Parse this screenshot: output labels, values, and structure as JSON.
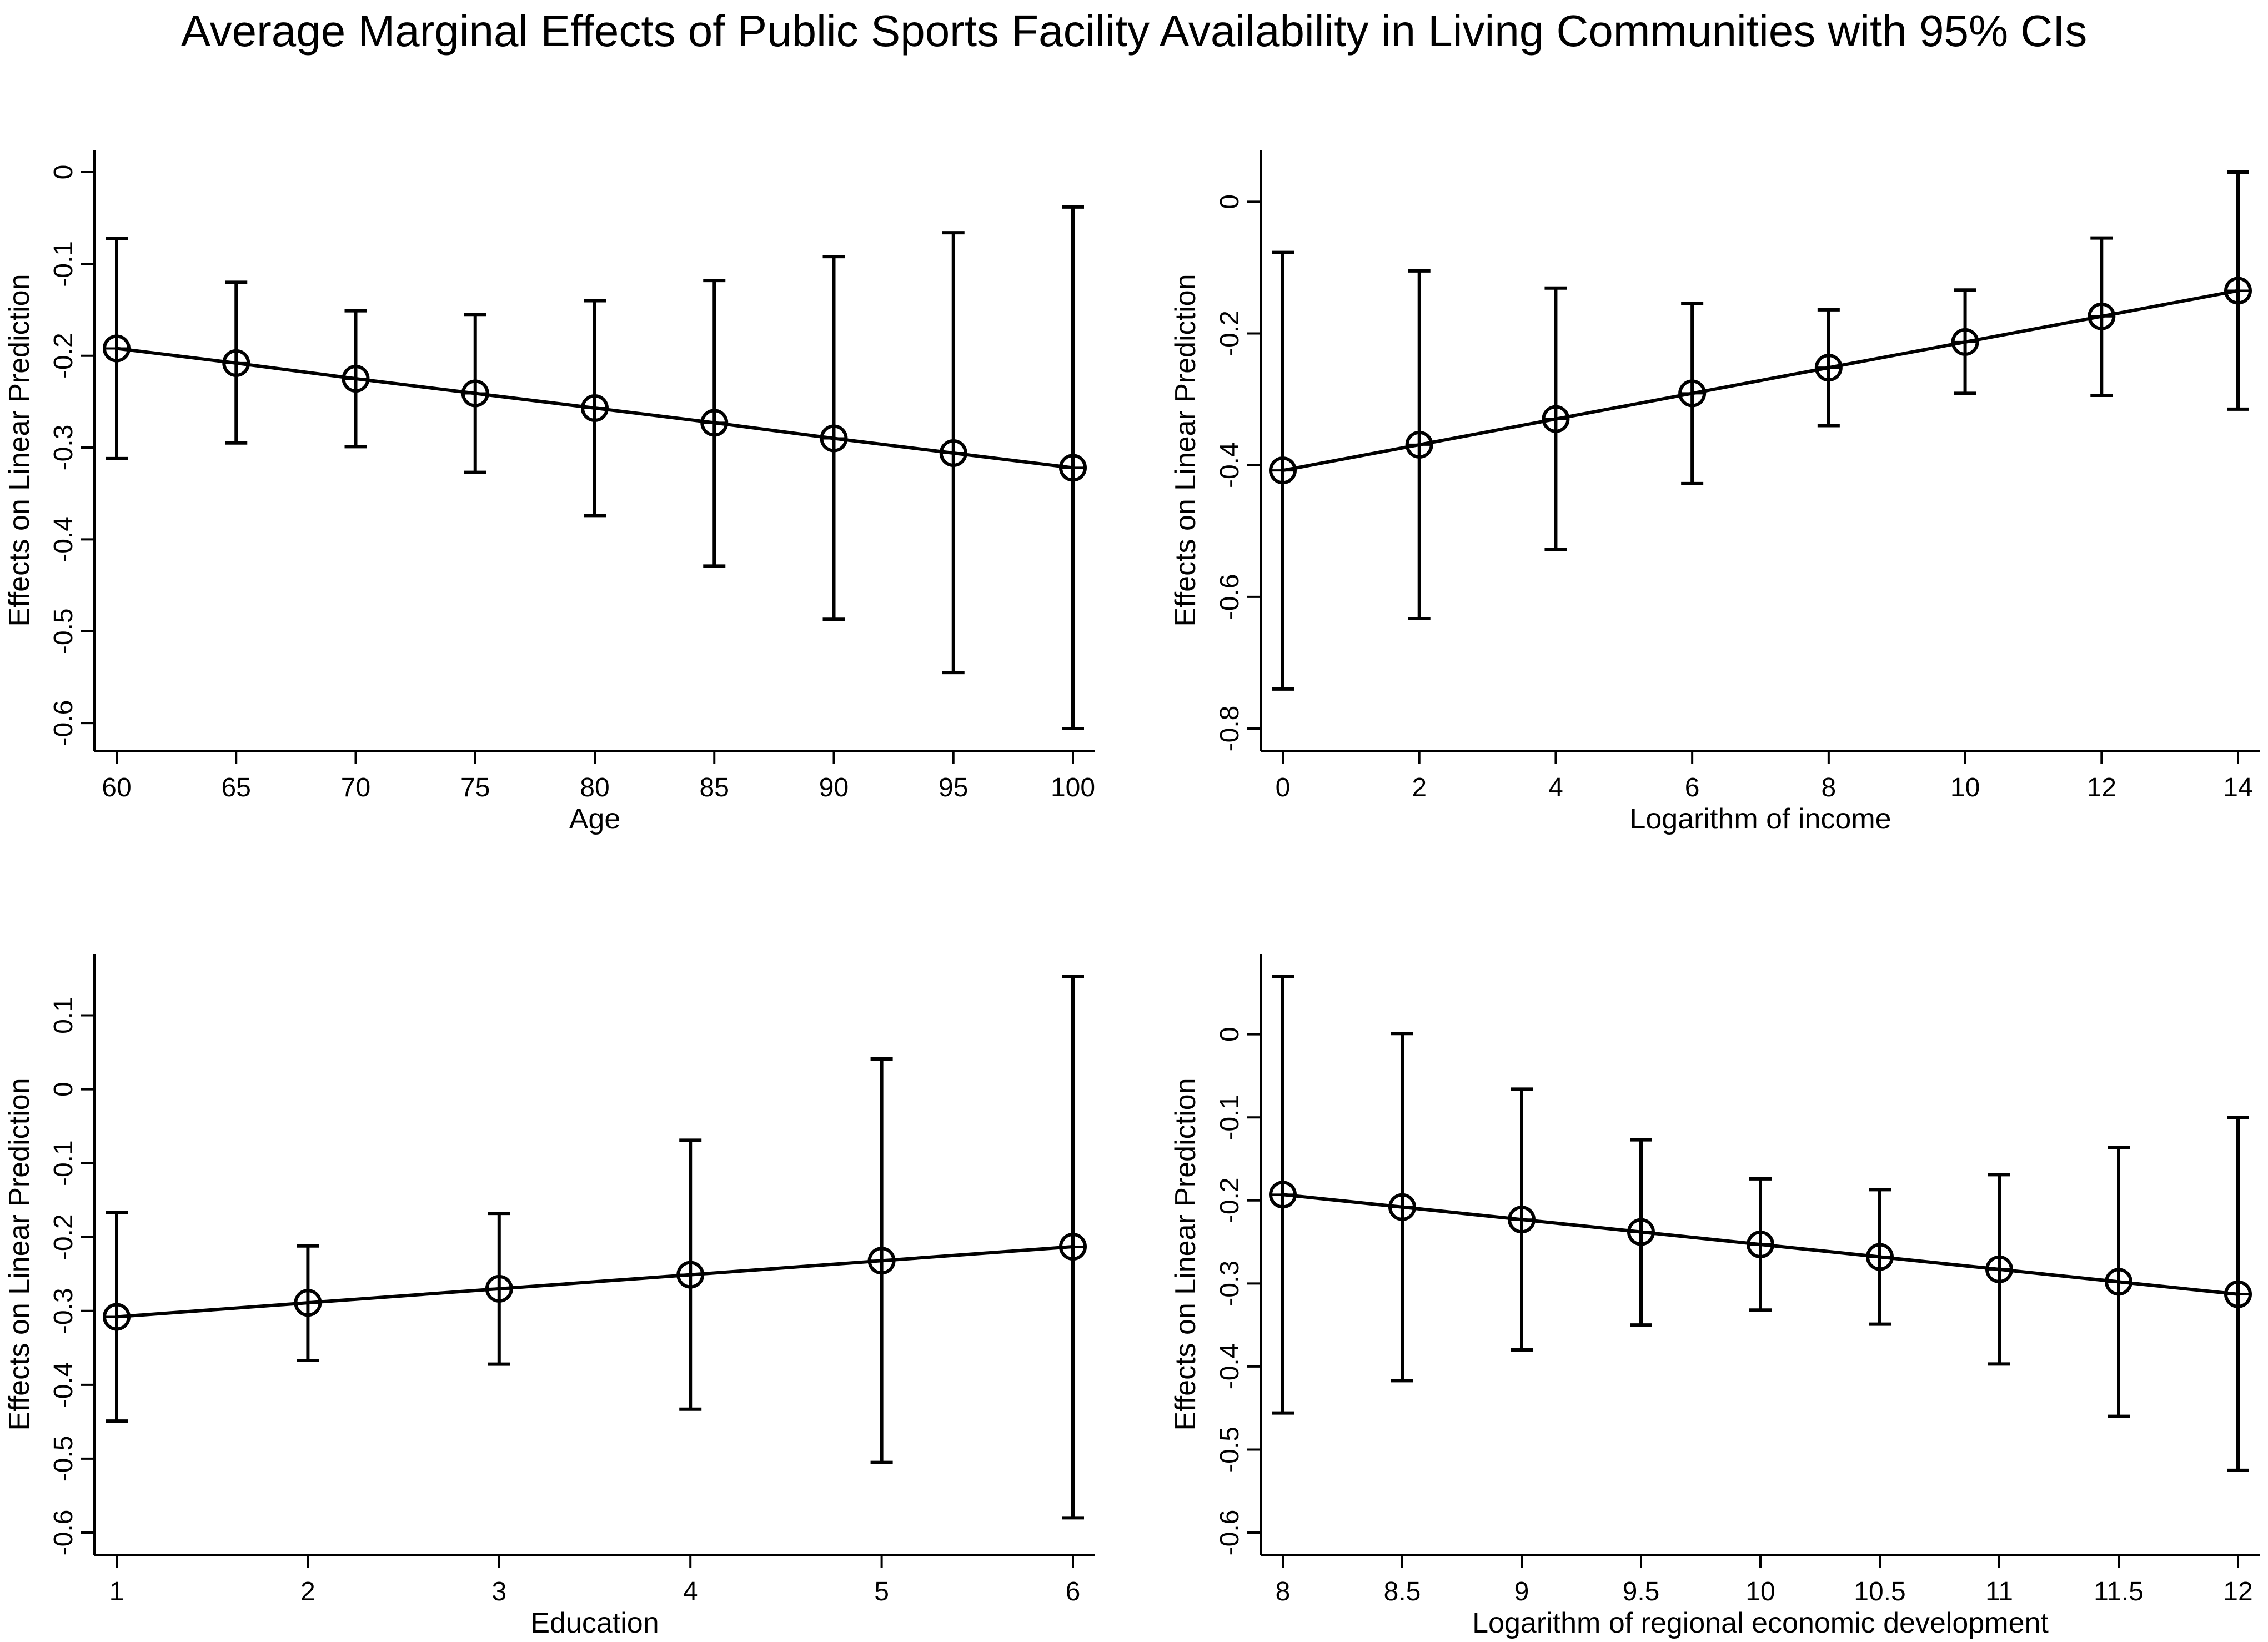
{
  "title": "Average Marginal Effects of Public Sports Facility Availability in Living Communities with 95% CIs",
  "chart_data": [
    {
      "type": "line",
      "xlabel": "Age",
      "ylabel": "Effects on Linear Prediction",
      "xlim": [
        60,
        100
      ],
      "ylim": [
        -0.6,
        0
      ],
      "xticks": [
        60,
        65,
        70,
        75,
        80,
        85,
        90,
        95,
        100
      ],
      "xtick_labels": [
        "60",
        "65",
        "70",
        "75",
        "80",
        "85",
        "90",
        "95",
        "100"
      ],
      "yticks": [
        -0.6,
        -0.5,
        -0.4,
        -0.3,
        -0.2,
        -0.1,
        0
      ],
      "ytick_labels": [
        "-0.6",
        "-0.5",
        "-0.4",
        "-0.3",
        "-0.2",
        "-0.1",
        "0"
      ],
      "grid": false,
      "x": [
        60,
        65,
        70,
        75,
        80,
        85,
        90,
        95,
        100
      ],
      "y": [
        -0.192,
        -0.208,
        -0.225,
        -0.241,
        -0.257,
        -0.273,
        -0.29,
        -0.306,
        -0.322
      ],
      "ci_low": [
        -0.312,
        -0.295,
        -0.299,
        -0.327,
        -0.374,
        -0.429,
        -0.487,
        -0.545,
        -0.606
      ],
      "ci_high": [
        -0.072,
        -0.12,
        -0.151,
        -0.155,
        -0.14,
        -0.118,
        -0.092,
        -0.066,
        -0.038
      ]
    },
    {
      "type": "line",
      "xlabel": "Logarithm of income",
      "ylabel": "Effects on Linear Prediction",
      "xlim": [
        0,
        14
      ],
      "ylim": [
        -0.8,
        0
      ],
      "xticks": [
        0,
        2,
        4,
        6,
        8,
        10,
        12,
        14
      ],
      "xtick_labels": [
        "0",
        "2",
        "4",
        "6",
        "8",
        "10",
        "12",
        "14"
      ],
      "yticks": [
        -0.8,
        -0.6,
        -0.4,
        -0.2,
        0
      ],
      "ytick_labels": [
        "-0.8",
        "-0.6",
        "-0.4",
        "-0.2",
        "0"
      ],
      "grid": false,
      "x": [
        0,
        2,
        4,
        6,
        8,
        10,
        12,
        14
      ],
      "y": [
        -0.408,
        -0.369,
        -0.33,
        -0.291,
        -0.252,
        -0.213,
        -0.174,
        -0.135
      ],
      "ci_low": [
        -0.74,
        -0.633,
        -0.528,
        -0.428,
        -0.34,
        -0.291,
        -0.294,
        -0.315
      ],
      "ci_high": [
        -0.077,
        -0.105,
        -0.131,
        -0.154,
        -0.164,
        -0.134,
        -0.055,
        0.045
      ]
    },
    {
      "type": "line",
      "xlabel": "Education",
      "ylabel": "Effects on Linear Prediction",
      "xlim": [
        1,
        6
      ],
      "ylim": [
        -0.6,
        0.1
      ],
      "xticks": [
        1,
        2,
        3,
        4,
        5,
        6
      ],
      "xtick_labels": [
        "1",
        "2",
        "3",
        "4",
        "5",
        "6"
      ],
      "yticks": [
        -0.6,
        -0.5,
        -0.4,
        -0.3,
        -0.2,
        -0.1,
        0,
        0.1
      ],
      "ytick_labels": [
        "-0.6",
        "-0.5",
        "-0.4",
        "-0.3",
        "-0.2",
        "-0.1",
        "0",
        "0.1"
      ],
      "grid": false,
      "x": [
        1,
        2,
        3,
        4,
        5,
        6
      ],
      "y": [
        -0.308,
        -0.289,
        -0.27,
        -0.251,
        -0.232,
        -0.213
      ],
      "ci_low": [
        -0.449,
        -0.367,
        -0.372,
        -0.433,
        -0.505,
        -0.58
      ],
      "ci_high": [
        -0.167,
        -0.212,
        -0.168,
        -0.069,
        0.041,
        0.153
      ]
    },
    {
      "type": "line",
      "xlabel": "Logarithm of regional economic development",
      "ylabel": "Effects on Linear Prediction",
      "xlim": [
        8,
        12
      ],
      "ylim": [
        -0.6,
        0
      ],
      "xticks": [
        8,
        8.5,
        9,
        9.5,
        10,
        10.5,
        11,
        11.5,
        12
      ],
      "xtick_labels": [
        "8",
        "8.5",
        "9",
        "9.5",
        "10",
        "10.5",
        "11",
        "11.5",
        "12"
      ],
      "yticks": [
        -0.6,
        -0.5,
        -0.4,
        -0.3,
        -0.2,
        -0.1,
        0
      ],
      "ytick_labels": [
        "-0.6",
        "-0.5",
        "-0.4",
        "-0.3",
        "-0.2",
        "-0.1",
        "0"
      ],
      "grid": false,
      "x": [
        8,
        8.5,
        9,
        9.5,
        10,
        10.5,
        11,
        11.5,
        12
      ],
      "y": [
        -0.193,
        -0.208,
        -0.223,
        -0.238,
        -0.253,
        -0.268,
        -0.283,
        -0.298,
        -0.313
      ],
      "ci_low": [
        -0.456,
        -0.417,
        -0.38,
        -0.35,
        -0.332,
        -0.349,
        -0.397,
        -0.46,
        -0.525
      ],
      "ci_high": [
        0.07,
        0.001,
        -0.066,
        -0.127,
        -0.174,
        -0.187,
        -0.169,
        -0.136,
        -0.1
      ]
    }
  ]
}
